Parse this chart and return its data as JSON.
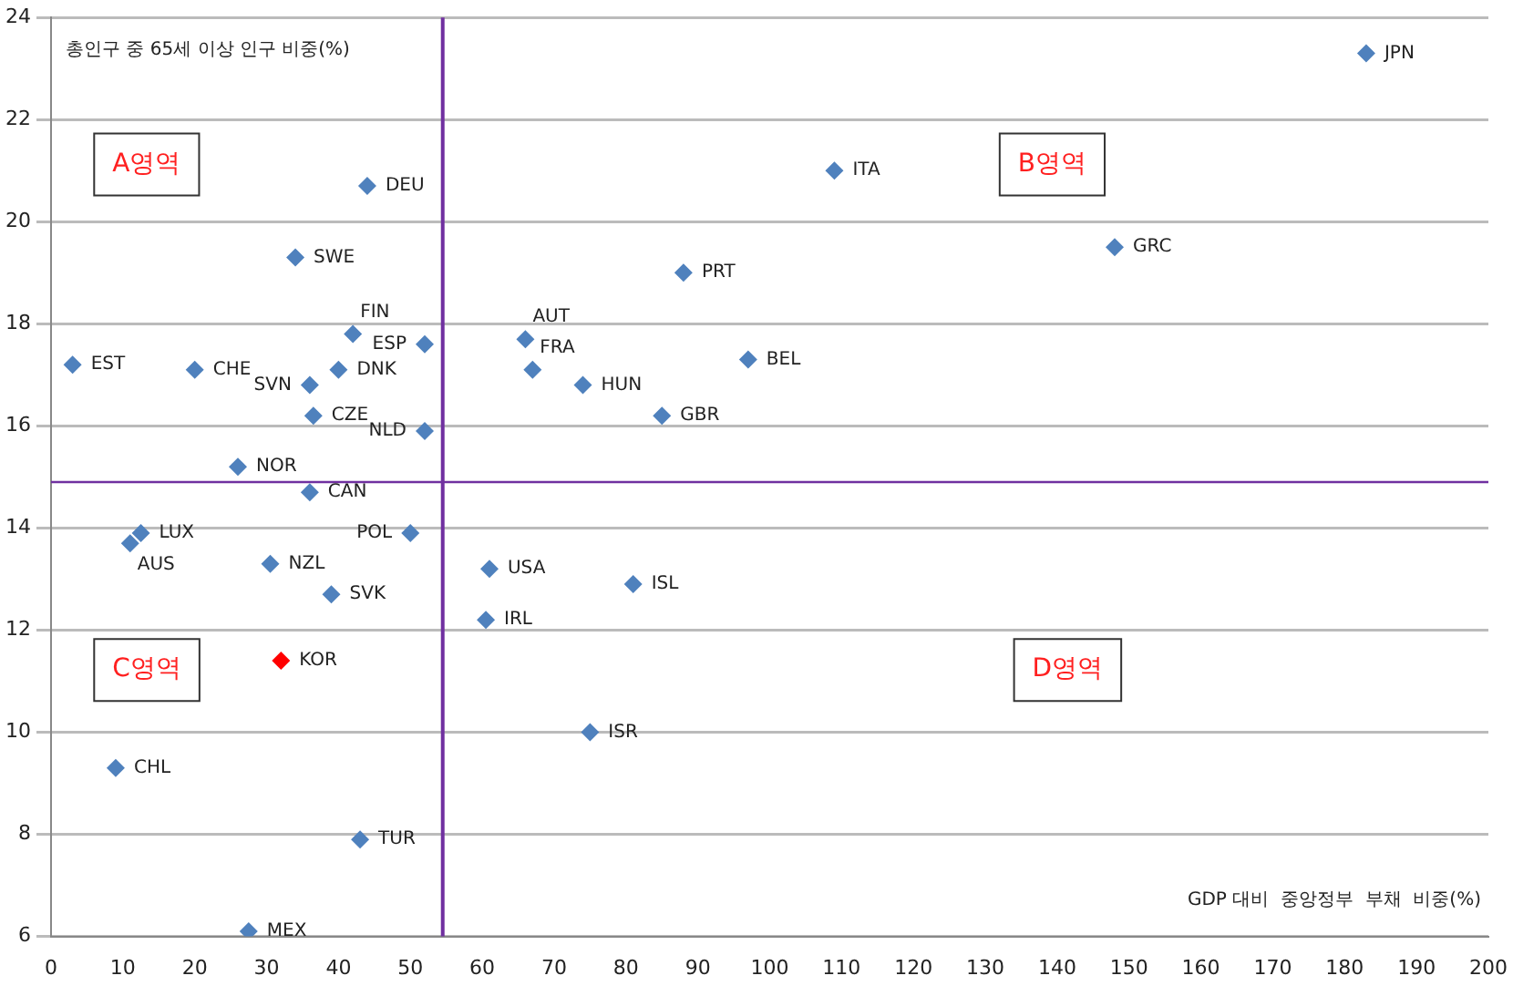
{
  "chart_data": {
    "type": "scatter",
    "xlabel": "GDP 대비  중앙정부  부채  비중(%)",
    "ylabel": "총인구 중 65세 이상 인구 비중(%)",
    "x": [
      183,
      109,
      148,
      88,
      97,
      85,
      74,
      67,
      66,
      52,
      52,
      44,
      34,
      42,
      40,
      36,
      36.5,
      3,
      20,
      26,
      36,
      12.5,
      11,
      50,
      30.5,
      39,
      61,
      81,
      60.5,
      32,
      75,
      9,
      43,
      27.5
    ],
    "values": [
      23.3,
      21.0,
      19.5,
      19.0,
      17.3,
      16.2,
      16.8,
      17.1,
      17.7,
      17.6,
      15.9,
      20.7,
      19.3,
      17.8,
      17.1,
      16.8,
      16.2,
      17.2,
      17.1,
      15.2,
      14.7,
      13.9,
      13.7,
      13.9,
      13.3,
      12.7,
      13.2,
      12.9,
      12.2,
      11.4,
      10.0,
      9.3,
      7.9,
      6.1
    ],
    "colors": [
      "#4f81bd",
      "#4f81bd",
      "#4f81bd",
      "#4f81bd",
      "#4f81bd",
      "#4f81bd",
      "#4f81bd",
      "#4f81bd",
      "#4f81bd",
      "#4f81bd",
      "#4f81bd",
      "#4f81bd",
      "#4f81bd",
      "#4f81bd",
      "#4f81bd",
      "#4f81bd",
      "#4f81bd",
      "#4f81bd",
      "#4f81bd",
      "#4f81bd",
      "#4f81bd",
      "#4f81bd",
      "#4f81bd",
      "#4f81bd",
      "#4f81bd",
      "#4f81bd",
      "#4f81bd",
      "#4f81bd",
      "#4f81bd",
      "#ff0000",
      "#4f81bd",
      "#4f81bd",
      "#4f81bd",
      "#4f81bd"
    ],
    "annotations": [
      {
        "text": "JPN",
        "x": 183,
        "y": 23.3
      },
      {
        "text": "ITA",
        "x": 109,
        "y": 21.0
      },
      {
        "text": "GRC",
        "x": 148,
        "y": 19.5
      },
      {
        "text": "PRT",
        "x": 88,
        "y": 19.0
      },
      {
        "text": "BEL",
        "x": 97,
        "y": 17.3
      },
      {
        "text": "GBR",
        "x": 85,
        "y": 16.2
      },
      {
        "text": "HUN",
        "x": 74,
        "y": 16.8
      },
      {
        "text": "FRA",
        "x": 67,
        "y": 17.1
      },
      {
        "text": "AUT",
        "x": 66,
        "y": 17.7
      },
      {
        "text": "ESP",
        "x": 52,
        "y": 17.6
      },
      {
        "text": "NLD",
        "x": 52,
        "y": 15.9
      },
      {
        "text": "DEU",
        "x": 44,
        "y": 20.7
      },
      {
        "text": "SWE",
        "x": 34,
        "y": 19.3
      },
      {
        "text": "FIN",
        "x": 42,
        "y": 17.8
      },
      {
        "text": "DNK",
        "x": 40,
        "y": 17.1
      },
      {
        "text": "SVN",
        "x": 36,
        "y": 16.8
      },
      {
        "text": "CZE",
        "x": 36.5,
        "y": 16.2
      },
      {
        "text": "EST",
        "x": 3,
        "y": 17.2
      },
      {
        "text": "CHE",
        "x": 20,
        "y": 17.1
      },
      {
        "text": "NOR",
        "x": 26,
        "y": 15.2
      },
      {
        "text": "CAN",
        "x": 36,
        "y": 14.7
      },
      {
        "text": "LUX",
        "x": 12.5,
        "y": 13.9
      },
      {
        "text": "AUS",
        "x": 11,
        "y": 13.7
      },
      {
        "text": "POL",
        "x": 50,
        "y": 13.9
      },
      {
        "text": "NZL",
        "x": 30.5,
        "y": 13.3
      },
      {
        "text": "SVK",
        "x": 39,
        "y": 12.7
      },
      {
        "text": "USA",
        "x": 61,
        "y": 13.2
      },
      {
        "text": "ISL",
        "x": 81,
        "y": 12.9
      },
      {
        "text": "IRL",
        "x": 60.5,
        "y": 12.2
      },
      {
        "text": "KOR",
        "x": 32,
        "y": 11.4
      },
      {
        "text": "ISR",
        "x": 75,
        "y": 10.0
      },
      {
        "text": "CHL",
        "x": 9,
        "y": 9.3
      },
      {
        "text": "TUR",
        "x": 43,
        "y": 7.9
      },
      {
        "text": "MEX",
        "x": 27.5,
        "y": 6.1
      },
      "A영역",
      "B영역",
      "C영역",
      "D영역"
    ],
    "ref_lines": [
      {
        "axis": "x",
        "value": 54.5,
        "color": "#7030a0"
      },
      {
        "axis": "y",
        "value": 14.9,
        "color": "#7030a0"
      }
    ],
    "xlim": [
      0,
      200
    ],
    "xticks": [
      0,
      10,
      20,
      30,
      40,
      50,
      60,
      70,
      80,
      90,
      100,
      110,
      120,
      130,
      140,
      150,
      160,
      170,
      180,
      190,
      200
    ],
    "ylim": [
      6,
      24
    ],
    "yticks": [
      6,
      8,
      10,
      12,
      14,
      16,
      18,
      20,
      22,
      24
    ],
    "grid": "y",
    "legend": false,
    "marker": "diamond"
  }
}
